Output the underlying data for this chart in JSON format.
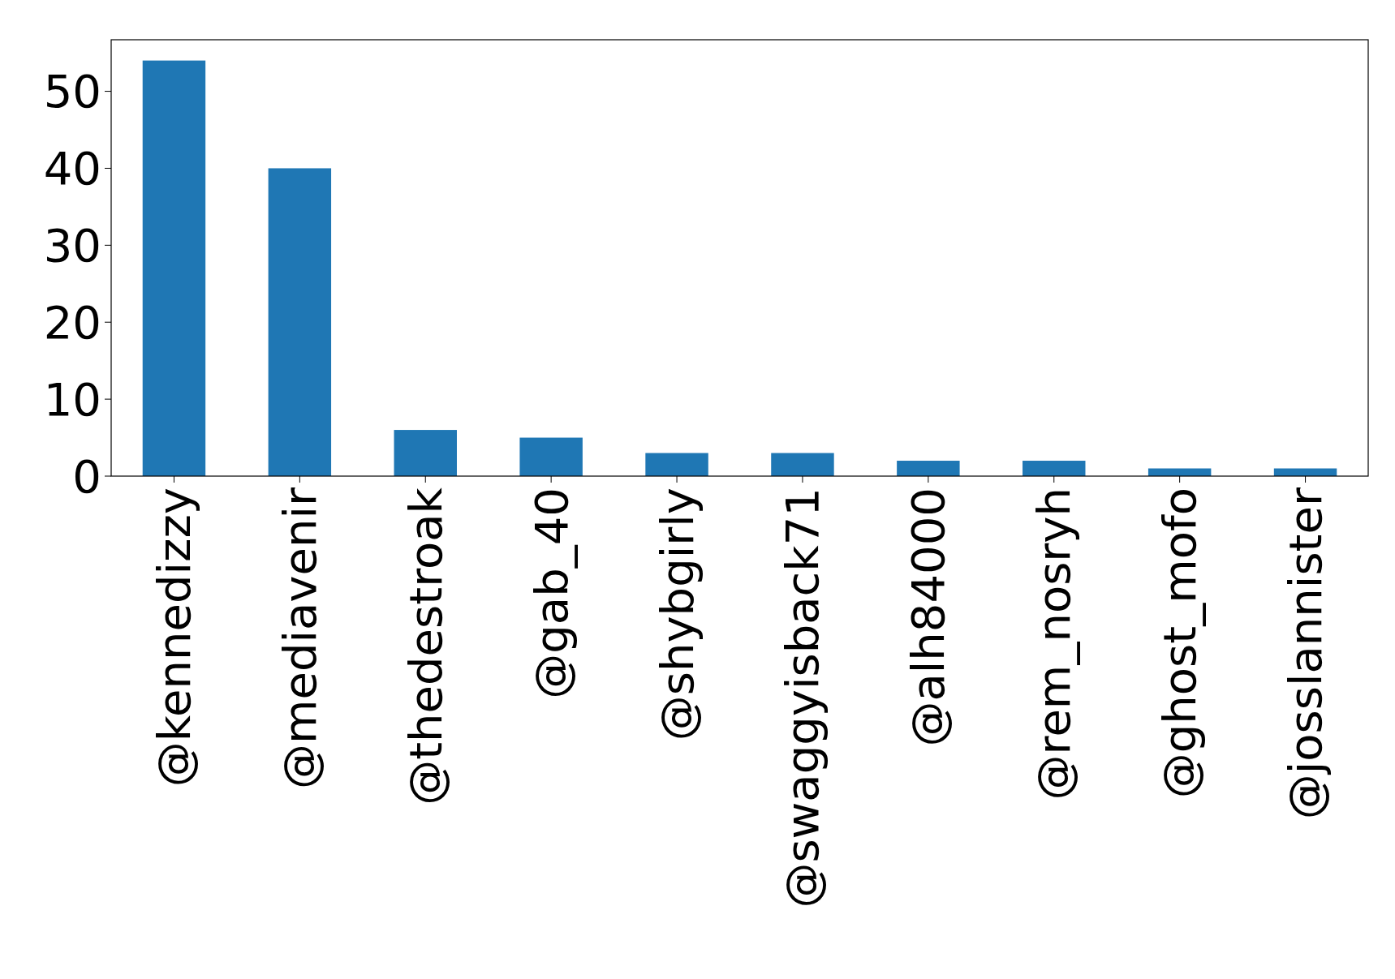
{
  "chart_data": {
    "type": "bar",
    "categories": [
      "@kennedizzy",
      "@mediavenir",
      "@thedestroak",
      "@gab_40",
      "@shybgirly",
      "@swaggyisback71",
      "@alh84000",
      "@rem_nosryh",
      "@ghost_mofo",
      "@josslannister"
    ],
    "values": [
      54,
      40,
      6,
      5,
      3,
      3,
      2,
      2,
      1,
      1
    ],
    "color": "#1f77b4",
    "ylim": [
      0,
      56.7
    ],
    "yticks": [
      0,
      10,
      20,
      30,
      40,
      50
    ],
    "grid": false
  }
}
